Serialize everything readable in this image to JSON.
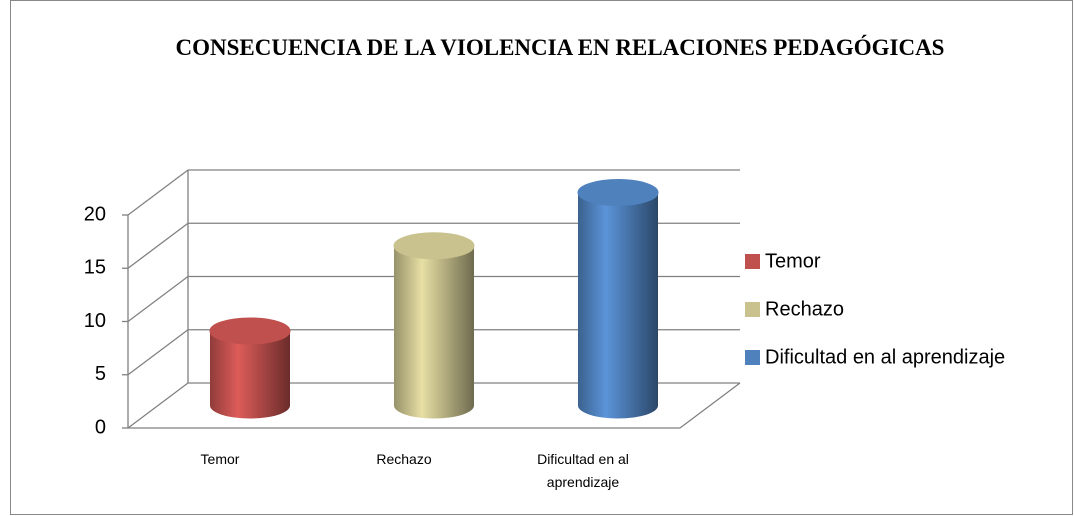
{
  "chart_data": {
    "type": "bar3d",
    "title": "CONSECUENCIA DE LA VIOLENCIA EN RELACIONES PEDAGÓGICAS",
    "categories": [
      "Temor",
      "Rechazo",
      "Dificultad en al aprendizaje"
    ],
    "values": [
      7,
      15,
      20
    ],
    "colors": [
      "#c0504d",
      "#c9c28f",
      "#4f81bd"
    ],
    "ylim": [
      0,
      20
    ],
    "yticks": [
      0,
      5,
      10,
      15,
      20
    ],
    "grid": true,
    "legend": "right"
  }
}
